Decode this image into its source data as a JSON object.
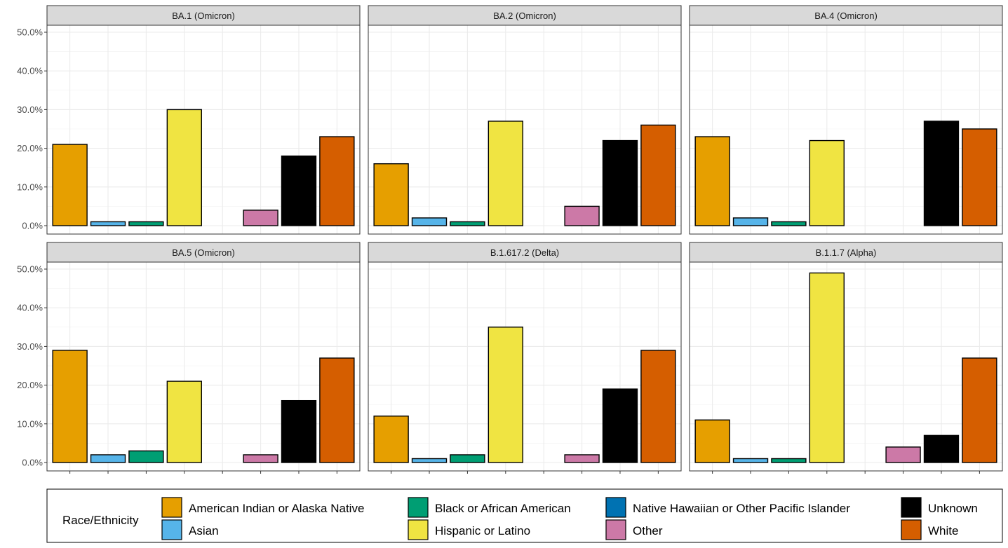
{
  "chart_data": {
    "type": "bar",
    "facet_layout": "3 columns x 2 rows",
    "categories": [
      "American Indian or Alaska Native",
      "Asian",
      "Black or African American",
      "Hispanic or Latino",
      "Native Hawaiian or Other Pacific Islander",
      "Other",
      "Unknown",
      "White"
    ],
    "ylim": [
      0,
      50
    ],
    "y_ticks": [
      "0.0%",
      "10.0%",
      "20.0%",
      "30.0%",
      "40.0%",
      "50.0%"
    ],
    "y_tick_values": [
      0,
      10,
      20,
      30,
      40,
      50
    ],
    "grid": true,
    "legend": {
      "title": "Race/Ethnicity",
      "position": "bottom",
      "entries": [
        {
          "label": "American Indian or Alaska Native",
          "color": "#E69F00"
        },
        {
          "label": "Asian",
          "color": "#56B4E9"
        },
        {
          "label": "Black or African American",
          "color": "#009E73"
        },
        {
          "label": "Hispanic or Latino",
          "color": "#F0E442"
        },
        {
          "label": "Native Hawaiian or Other Pacific Islander",
          "color": "#0072B2"
        },
        {
          "label": "Other",
          "color": "#CC79A7"
        },
        {
          "label": "Unknown",
          "color": "#000000"
        },
        {
          "label": "White",
          "color": "#D55E00"
        }
      ]
    },
    "facets": [
      {
        "title": "BA.1 (Omicron)",
        "values": [
          21,
          1,
          1,
          30,
          0,
          4,
          18,
          23
        ]
      },
      {
        "title": "BA.2 (Omicron)",
        "values": [
          16,
          2,
          1,
          27,
          0,
          5,
          22,
          26
        ]
      },
      {
        "title": "BA.4 (Omicron)",
        "values": [
          23,
          2,
          1,
          22,
          null,
          null,
          27,
          25
        ]
      },
      {
        "title": "BA.5 (Omicron)",
        "values": [
          29,
          2,
          3,
          21,
          null,
          2,
          16,
          27
        ]
      },
      {
        "title": "B.1.617.2 (Delta)",
        "values": [
          12,
          1,
          2,
          35,
          0,
          2,
          19,
          29
        ]
      },
      {
        "title": "B.1.1.7 (Alpha)",
        "values": [
          11,
          1,
          1,
          49,
          0,
          4,
          7,
          27
        ]
      }
    ]
  }
}
